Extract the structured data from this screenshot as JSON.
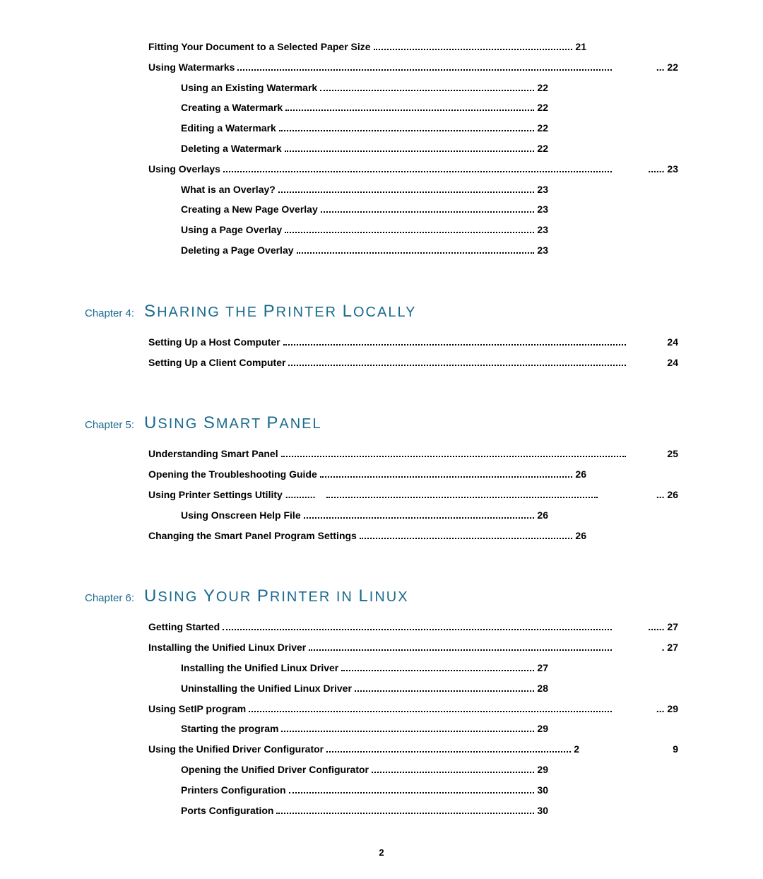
{
  "colors": {
    "accent": "#1a6a8e",
    "text": "#000000",
    "bg": "#ffffff"
  },
  "typography": {
    "body_size_pt": 10,
    "title_size_pt": 16,
    "font": "Arial"
  },
  "page_number": "2",
  "pre": [
    {
      "type": "l1-inline",
      "label": "Fitting Your Document to a Selected Paper Size",
      "page": "21"
    },
    {
      "type": "l1-far",
      "label": "Using Watermarks",
      "far_page": "22",
      "prefix": "..."
    },
    {
      "type": "sub",
      "label": "Using an Existing Watermark",
      "page": "22"
    },
    {
      "type": "sub",
      "label": "Creating a Watermark",
      "page": "22"
    },
    {
      "type": "sub",
      "label": "Editing a Watermark",
      "page": "22"
    },
    {
      "type": "sub",
      "label": "Deleting a Watermark",
      "page": "22"
    },
    {
      "type": "l1-far",
      "label": "Using Overlays",
      "far_page": "23",
      "prefix": "......"
    },
    {
      "type": "sub",
      "label": "What is an Overlay?",
      "page": "23"
    },
    {
      "type": "sub",
      "label": "Creating a New Page Overlay",
      "page": "23"
    },
    {
      "type": "sub",
      "label": "Using a Page Overlay",
      "page": "23"
    },
    {
      "type": "sub",
      "label": "Deleting a Page Overlay",
      "page": "23"
    }
  ],
  "ch4": {
    "label": "Chapter 4:",
    "title_parts": [
      "S",
      "HARING   THE  ",
      "P",
      "RINTER  ",
      "L",
      "OCALLY"
    ],
    "rows": [
      {
        "type": "l1-far-plain",
        "label": "Setting Up a Host Computer",
        "far_page": "24"
      },
      {
        "type": "l1-far-plain",
        "label": "Setting Up a Client Computer",
        "far_page": "24"
      }
    ]
  },
  "ch5": {
    "label": "Chapter 5:",
    "title_parts": [
      "U",
      "SING  ",
      "S",
      "MART  ",
      "P",
      "ANEL"
    ],
    "rows": [
      {
        "type": "l1-far-plain",
        "label": "Understanding Smart Panel",
        "far_page": "25"
      },
      {
        "type": "l1-inline",
        "label": "Opening the Troubleshooting Guide",
        "page": "26"
      },
      {
        "type": "l1-far-split",
        "label": "Using Printer Settings Utility",
        "mid": "...........",
        "far_page": "26",
        "prefix": "..."
      },
      {
        "type": "sub",
        "label": "Using Onscreen Help File",
        "page": "26"
      },
      {
        "type": "l1-inline",
        "label": "Changing the Smart Panel Program Settings",
        "page": "26"
      }
    ]
  },
  "ch6": {
    "label": "Chapter 6:",
    "title_parts": [
      "U",
      "SING  ",
      "Y",
      "OUR  ",
      "P",
      "RINTER   IN  ",
      "L",
      "INUX"
    ],
    "rows": [
      {
        "type": "l1-far",
        "label": "Getting Started",
        "far_page": "27",
        "prefix": "......"
      },
      {
        "type": "l1-far",
        "label": "Installing the Unified Linux Driver",
        "far_page": "27",
        "prefix": "."
      },
      {
        "type": "sub",
        "label": "Installing the Unified Linux Driver",
        "page": "27"
      },
      {
        "type": "sub",
        "label": "Uninstalling the Unified Linux Driver",
        "page": "28"
      },
      {
        "type": "l1-far",
        "label": "Using SetIP program",
        "far_page": "29",
        "prefix": "..."
      },
      {
        "type": "sub",
        "label": "Starting the program",
        "page": "29"
      },
      {
        "type": "l1-split-num",
        "label": "Using the Unified Driver Configurator",
        "page": "2",
        "far_page": "9"
      },
      {
        "type": "sub",
        "label": "Opening the Unified Driver Configurator",
        "page": "29"
      },
      {
        "type": "sub",
        "label": "Printers Configuration",
        "page": "30"
      },
      {
        "type": "sub",
        "label": "Ports Configuration",
        "page": "30"
      }
    ]
  }
}
